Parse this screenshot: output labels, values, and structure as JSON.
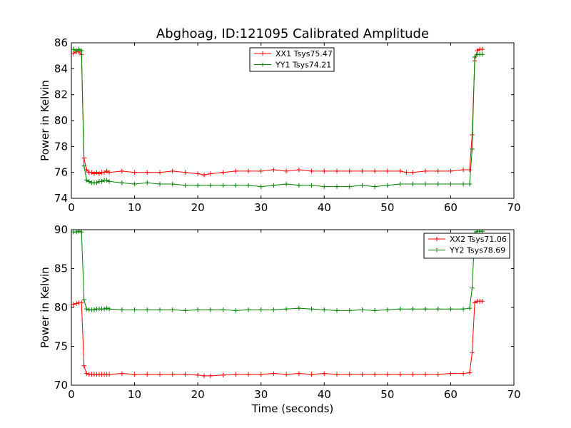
{
  "figure_title": "Abghoag, ID:121095 Calibrated Amplitude",
  "chart_data": [
    {
      "type": "line",
      "title": "Abghoag, ID:121095 Calibrated Amplitude",
      "xlabel": "",
      "ylabel": "Power in Kelvin",
      "xlim": [
        0,
        70
      ],
      "ylim": [
        74,
        86
      ],
      "xticks": [
        0,
        10,
        20,
        30,
        40,
        50,
        60,
        70
      ],
      "yticks": [
        74,
        76,
        78,
        80,
        82,
        84,
        86
      ],
      "grid": false,
      "legend_position": "top-center",
      "marker": "+",
      "series": [
        {
          "name": "XX1 Tsys75.47",
          "color": "#ff0000",
          "x": [
            0.3,
            0.8,
            1.2,
            1.6,
            2.0,
            2.4,
            2.8,
            3.2,
            3.6,
            4.0,
            4.4,
            4.8,
            5.2,
            5.6,
            6.0,
            8.0,
            10.0,
            12.0,
            14.0,
            16.0,
            18.0,
            20.0,
            21.0,
            22.0,
            24.0,
            26.0,
            28.0,
            30.0,
            32.0,
            34.0,
            36.0,
            38.0,
            40.0,
            42.0,
            44.0,
            46.0,
            48.0,
            50.0,
            52.0,
            53.0,
            54.0,
            56.0,
            58.0,
            60.0,
            62.0,
            63.0,
            63.4,
            63.8,
            64.2,
            64.6,
            65.0
          ],
          "values": [
            85.2,
            85.3,
            85.3,
            85.1,
            77.1,
            76.2,
            76.0,
            76.0,
            75.9,
            76.0,
            75.9,
            76.0,
            76.0,
            76.1,
            76.0,
            76.1,
            76.0,
            76.0,
            76.0,
            76.1,
            76.0,
            75.9,
            75.8,
            75.9,
            76.0,
            76.1,
            76.1,
            76.1,
            76.2,
            76.1,
            76.2,
            76.1,
            76.1,
            76.1,
            76.1,
            76.1,
            76.1,
            76.1,
            76.1,
            76.0,
            76.0,
            76.1,
            76.1,
            76.1,
            76.2,
            76.2,
            78.9,
            84.6,
            85.4,
            85.5,
            85.5
          ]
        },
        {
          "name": "YY1 Tsys74.21",
          "color": "#008000",
          "x": [
            0.3,
            0.8,
            1.2,
            1.6,
            2.0,
            2.4,
            2.8,
            3.2,
            3.6,
            4.0,
            4.4,
            4.8,
            5.2,
            5.6,
            6.0,
            8.0,
            10.0,
            12.0,
            14.0,
            16.0,
            18.0,
            20.0,
            22.0,
            24.0,
            26.0,
            28.0,
            30.0,
            32.0,
            34.0,
            36.0,
            38.0,
            40.0,
            42.0,
            44.0,
            46.0,
            48.0,
            50.0,
            52.0,
            54.0,
            56.0,
            58.0,
            60.0,
            62.0,
            63.0,
            63.4,
            63.8,
            64.2,
            64.6,
            65.0
          ],
          "values": [
            85.5,
            85.4,
            85.5,
            85.4,
            76.5,
            75.4,
            75.3,
            75.2,
            75.2,
            75.2,
            75.3,
            75.3,
            75.4,
            75.4,
            75.3,
            75.2,
            75.1,
            75.2,
            75.1,
            75.1,
            75.0,
            75.0,
            75.0,
            75.0,
            75.0,
            75.0,
            74.9,
            75.0,
            75.1,
            75.0,
            75.0,
            74.9,
            74.9,
            74.9,
            75.0,
            74.9,
            75.0,
            75.1,
            75.1,
            75.1,
            75.1,
            75.1,
            75.1,
            75.1,
            77.8,
            84.9,
            85.1,
            85.1,
            85.1
          ]
        }
      ]
    },
    {
      "type": "line",
      "title": "",
      "xlabel": "Time (seconds)",
      "ylabel": "Power in Kelvin",
      "xlim": [
        0,
        70
      ],
      "ylim": [
        70,
        90
      ],
      "xticks": [
        0,
        10,
        20,
        30,
        40,
        50,
        60,
        70
      ],
      "yticks": [
        70,
        75,
        80,
        85,
        90
      ],
      "grid": false,
      "legend_position": "top-right",
      "marker": "+",
      "series": [
        {
          "name": "XX2 Tsys71.06",
          "color": "#ff0000",
          "x": [
            0.3,
            0.8,
            1.2,
            1.6,
            2.0,
            2.4,
            2.8,
            3.2,
            3.6,
            4.0,
            4.4,
            4.8,
            5.2,
            5.6,
            6.0,
            8.0,
            10.0,
            12.0,
            14.0,
            16.0,
            18.0,
            20.0,
            21.0,
            22.0,
            24.0,
            26.0,
            28.0,
            30.0,
            32.0,
            34.0,
            36.0,
            38.0,
            40.0,
            42.0,
            44.0,
            46.0,
            48.0,
            50.0,
            52.0,
            54.0,
            56.0,
            58.0,
            60.0,
            62.0,
            63.0,
            63.4,
            63.8,
            64.2,
            64.6,
            65.0
          ],
          "values": [
            80.4,
            80.5,
            80.6,
            80.6,
            72.5,
            71.5,
            71.4,
            71.4,
            71.4,
            71.4,
            71.4,
            71.4,
            71.4,
            71.4,
            71.4,
            71.5,
            71.4,
            71.4,
            71.4,
            71.4,
            71.4,
            71.3,
            71.2,
            71.2,
            71.3,
            71.4,
            71.4,
            71.4,
            71.5,
            71.4,
            71.5,
            71.4,
            71.5,
            71.4,
            71.4,
            71.4,
            71.4,
            71.4,
            71.4,
            71.4,
            71.4,
            71.4,
            71.5,
            71.5,
            71.6,
            74.2,
            80.6,
            80.8,
            80.8,
            80.8
          ]
        },
        {
          "name": "YY2 Tsys78.69",
          "color": "#008000",
          "x": [
            0.3,
            0.8,
            1.2,
            1.6,
            2.0,
            2.4,
            2.8,
            3.2,
            3.6,
            4.0,
            4.4,
            4.8,
            5.2,
            5.6,
            6.0,
            8.0,
            10.0,
            12.0,
            14.0,
            16.0,
            18.0,
            20.0,
            22.0,
            24.0,
            26.0,
            28.0,
            30.0,
            32.0,
            34.0,
            36.0,
            38.0,
            40.0,
            42.0,
            44.0,
            46.0,
            48.0,
            50.0,
            52.0,
            54.0,
            56.0,
            58.0,
            60.0,
            62.0,
            63.0,
            63.4,
            63.8,
            64.2,
            64.6,
            65.0
          ],
          "values": [
            89.7,
            89.7,
            89.8,
            89.7,
            81.0,
            79.8,
            79.7,
            79.7,
            79.7,
            79.8,
            79.8,
            79.8,
            79.8,
            79.9,
            79.8,
            79.7,
            79.7,
            79.7,
            79.7,
            79.7,
            79.6,
            79.7,
            79.7,
            79.7,
            79.6,
            79.7,
            79.7,
            79.7,
            79.8,
            79.9,
            79.8,
            79.7,
            79.6,
            79.6,
            79.7,
            79.6,
            79.7,
            79.8,
            79.8,
            79.8,
            79.8,
            79.8,
            79.8,
            79.9,
            82.5,
            89.5,
            89.8,
            89.8,
            89.8
          ]
        }
      ]
    }
  ]
}
